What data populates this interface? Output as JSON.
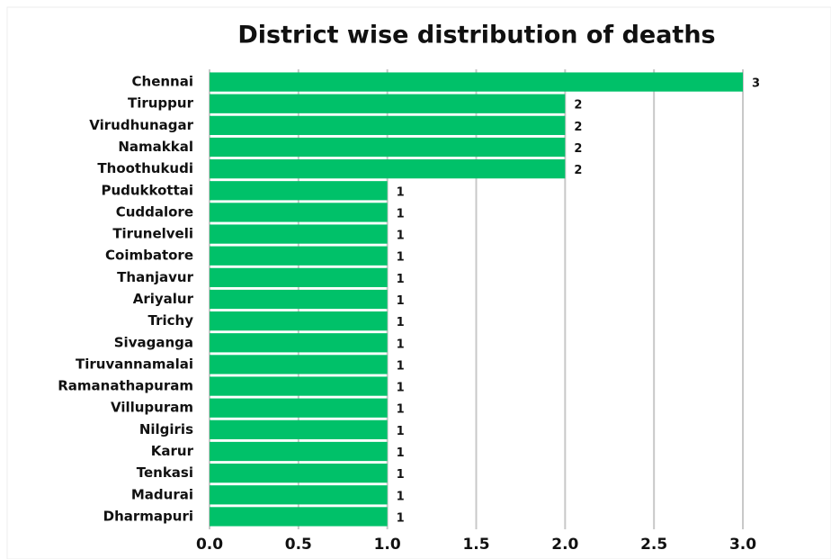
{
  "chart_data": {
    "type": "hbar",
    "title": "District wise distribution of deaths",
    "categories": [
      "Chennai",
      "Tiruppur",
      "Virudhunagar",
      "Namakkal",
      "Thoothukudi",
      "Pudukkottai",
      "Cuddalore",
      "Tirunelveli",
      "Coimbatore",
      "Thanjavur",
      "Ariyalur",
      "Trichy",
      "Sivaganga",
      "Tiruvannamalai",
      "Ramanathapuram",
      "Villupuram",
      "Nilgiris",
      "Karur",
      "Tenkasi",
      "Madurai",
      "Dharmapuri"
    ],
    "values": [
      3,
      2,
      2,
      2,
      2,
      1,
      1,
      1,
      1,
      1,
      1,
      1,
      1,
      1,
      1,
      1,
      1,
      1,
      1,
      1,
      1
    ],
    "color": "#00c169",
    "xlim": [
      0,
      3
    ],
    "xticks": [
      {
        "value": 0,
        "label": "0.0"
      },
      0.5,
      {
        "value": 1,
        "label": "1.0"
      },
      1.5,
      {
        "value": 2,
        "label": "2.0"
      },
      2.5,
      {
        "value": 3,
        "label": "3.0"
      }
    ],
    "grid": true
  }
}
